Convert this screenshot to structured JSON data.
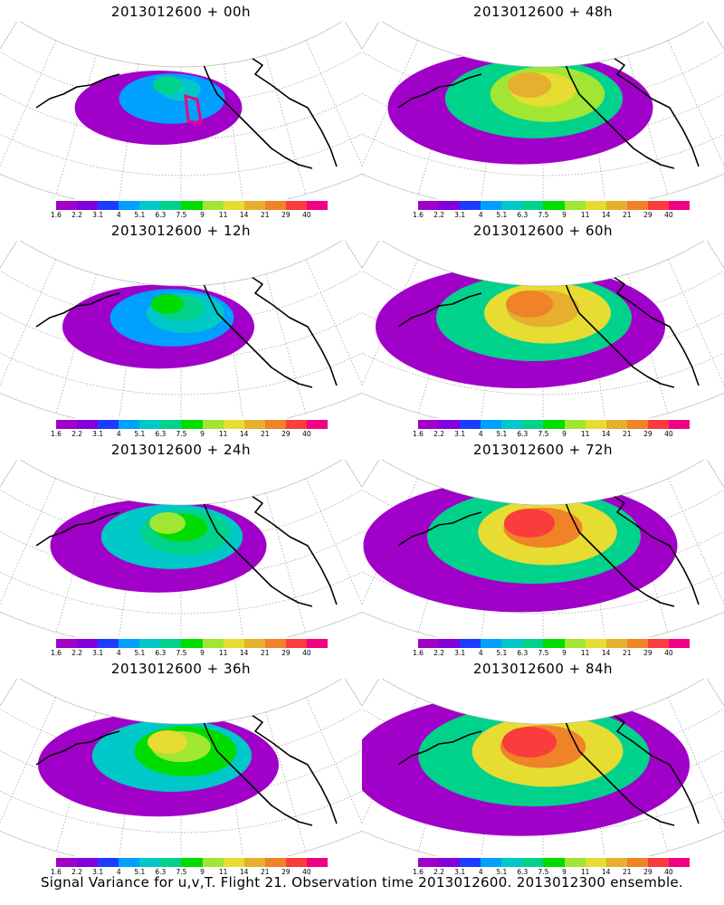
{
  "panels": [
    {
      "title": "2013012600 + 00h",
      "stage": 0
    },
    {
      "title": "2013012600 + 48h",
      "stage": 4
    },
    {
      "title": "2013012600 + 12h",
      "stage": 1
    },
    {
      "title": "2013012600 + 60h",
      "stage": 5
    },
    {
      "title": "2013012600 + 24h",
      "stage": 2
    },
    {
      "title": "2013012600 + 72h",
      "stage": 6
    },
    {
      "title": "2013012600 + 36h",
      "stage": 3
    },
    {
      "title": "2013012600 + 84h",
      "stage": 7
    }
  ],
  "colorbar": {
    "labels": [
      "1.6",
      "2.2",
      "3.1",
      "4",
      "5.1",
      "6.3",
      "7.5",
      "9",
      "11",
      "14",
      "21",
      "29",
      "40"
    ],
    "colors": [
      "#a000c8",
      "#8200dc",
      "#1e3cff",
      "#00a0ff",
      "#00c8c8",
      "#00d28c",
      "#00dc00",
      "#a0e632",
      "#e6dc32",
      "#e6af2d",
      "#f08228",
      "#fa3c3c",
      "#f00082"
    ]
  },
  "footer": "Signal Variance for u,v,T. Flight 21. Observation time 2013012600. 2013012300 ensemble."
}
